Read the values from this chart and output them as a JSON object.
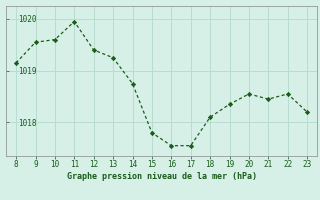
{
  "x": [
    8,
    9,
    10,
    11,
    12,
    13,
    14,
    15,
    16,
    17,
    18,
    19,
    20,
    21,
    22,
    23
  ],
  "y": [
    1019.15,
    1019.55,
    1019.6,
    1019.95,
    1019.4,
    1019.25,
    1018.75,
    1017.8,
    1017.55,
    1017.55,
    1018.1,
    1018.35,
    1018.55,
    1018.45,
    1018.55,
    1018.2
  ],
  "line_color": "#1a5c1a",
  "marker_color": "#1a5c1a",
  "bg_color": "#d6f0e8",
  "grid_color": "#b8ddd0",
  "xlabel": "Graphe pression niveau de la mer (hPa)",
  "xlabel_color": "#1a5c1a",
  "tick_color": "#1a5c1a",
  "ylim_min": 1017.35,
  "ylim_max": 1020.25,
  "ytick_positions": [
    1018,
    1019,
    1020
  ],
  "xlim_min": 7.5,
  "xlim_max": 23.5,
  "xtick_positions": [
    8,
    9,
    10,
    11,
    12,
    13,
    14,
    15,
    16,
    17,
    18,
    19,
    20,
    21,
    22,
    23
  ]
}
